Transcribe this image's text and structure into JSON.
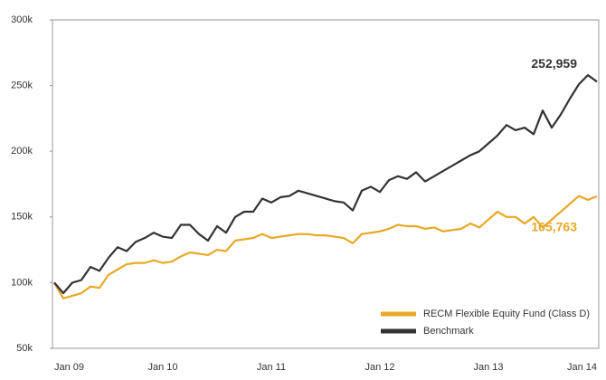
{
  "chart_data": {
    "type": "line",
    "categories": [
      "Jan 09",
      null,
      null,
      null,
      null,
      null,
      null,
      null,
      null,
      null,
      null,
      null,
      "Jan 10",
      null,
      null,
      null,
      null,
      null,
      null,
      null,
      null,
      null,
      null,
      null,
      "Jan 11",
      null,
      null,
      null,
      null,
      null,
      null,
      null,
      null,
      null,
      null,
      null,
      "Jan 12",
      null,
      null,
      null,
      null,
      null,
      null,
      null,
      null,
      null,
      null,
      null,
      "Jan 13",
      null,
      null,
      null,
      null,
      null,
      null,
      null,
      null,
      null,
      null,
      null,
      "Jan 14"
    ],
    "series": [
      {
        "name": "RECM Flexible Equity Fund (Class D)",
        "color": "#e9a825",
        "values": [
          100000,
          88000,
          90000,
          92000,
          97000,
          96000,
          106000,
          110000,
          114000,
          115000,
          115000,
          117000,
          115000,
          116000,
          120000,
          123000,
          122000,
          121000,
          125000,
          124000,
          132000,
          133000,
          134000,
          137000,
          134000,
          135000,
          136000,
          137000,
          137000,
          136000,
          136000,
          135000,
          134000,
          130000,
          137000,
          138000,
          139000,
          141000,
          144000,
          143000,
          143000,
          141000,
          142000,
          139000,
          140000,
          141000,
          145000,
          142000,
          148000,
          154000,
          150000,
          150000,
          145000,
          150000,
          142000,
          148000,
          154000,
          160000,
          166000,
          163000,
          165763
        ],
        "value_labels": [
          null,
          null,
          null,
          null,
          null,
          null,
          null,
          null,
          null,
          null,
          null,
          null,
          null,
          null,
          null,
          null,
          null,
          null,
          null,
          null,
          null,
          null,
          null,
          null,
          null,
          null,
          null,
          null,
          null,
          null,
          null,
          null,
          null,
          null,
          null,
          null,
          null,
          null,
          null,
          null,
          null,
          null,
          null,
          null,
          null,
          null,
          null,
          null,
          null,
          null,
          null,
          null,
          null,
          null,
          null,
          null,
          null,
          null,
          null,
          null,
          "165,763"
        ]
      },
      {
        "name": "Benchmark",
        "color": "#333333",
        "values": [
          100000,
          92000,
          100000,
          102000,
          112000,
          109000,
          119000,
          127000,
          124000,
          131000,
          134000,
          138000,
          135000,
          134000,
          144000,
          144000,
          137000,
          132000,
          143000,
          138000,
          150000,
          154000,
          154000,
          164000,
          161000,
          165000,
          166000,
          170000,
          168000,
          166000,
          164000,
          162000,
          161000,
          155000,
          170000,
          173000,
          169000,
          178000,
          181000,
          179000,
          184000,
          177000,
          181000,
          185000,
          189000,
          193000,
          197000,
          200000,
          206000,
          212000,
          220000,
          216000,
          218000,
          213000,
          231000,
          218000,
          228000,
          240000,
          251000,
          258000,
          252959
        ],
        "value_labels": [
          null,
          null,
          null,
          null,
          null,
          null,
          null,
          null,
          null,
          null,
          null,
          null,
          null,
          null,
          null,
          null,
          null,
          null,
          null,
          null,
          null,
          null,
          null,
          null,
          null,
          null,
          null,
          null,
          null,
          null,
          null,
          null,
          null,
          null,
          null,
          null,
          null,
          null,
          null,
          null,
          null,
          null,
          null,
          null,
          null,
          null,
          null,
          null,
          null,
          null,
          null,
          null,
          null,
          null,
          null,
          null,
          null,
          null,
          null,
          null,
          "252,959"
        ]
      }
    ],
    "ylim": [
      50000,
      300000
    ],
    "yticks": [
      {
        "value": 50000,
        "label": "50k"
      },
      {
        "value": 100000,
        "label": "100k"
      },
      {
        "value": 150000,
        "label": "150k"
      },
      {
        "value": 200000,
        "label": "200k"
      },
      {
        "value": 250000,
        "label": "250k"
      },
      {
        "value": 300000,
        "label": "300k"
      }
    ],
    "grid": false,
    "legend": "lower right"
  }
}
